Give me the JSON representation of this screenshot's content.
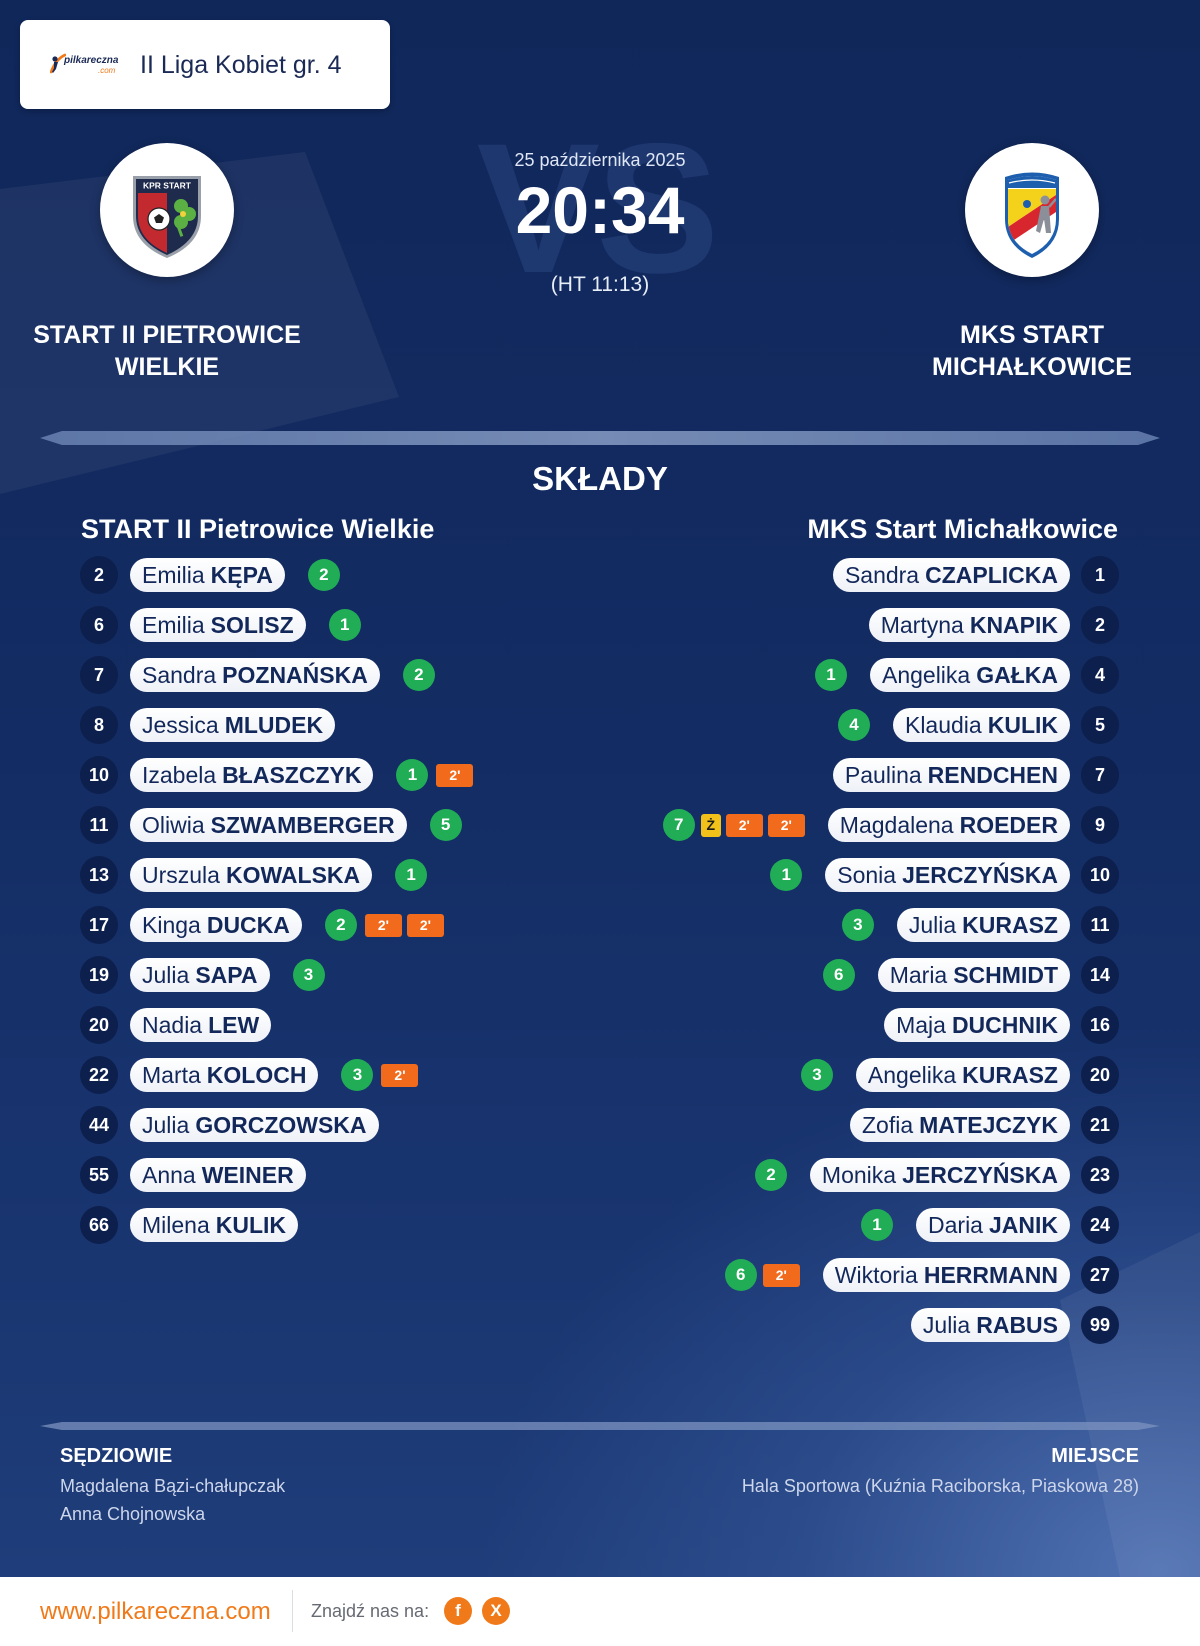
{
  "league": {
    "logo_text": "pilkareczna",
    "logo_suffix": ".com",
    "name": "II Liga Kobiet gr. 4"
  },
  "match": {
    "date": "25 października 2025",
    "score": "20:34",
    "halftime": "(HT 11:13)",
    "vs_label": "VS"
  },
  "home": {
    "name_display": "START II PIETROWICE WIELKIE",
    "lineup_title": "START II Pietrowice Wielkie",
    "logo_text": "KPR START",
    "players": [
      {
        "number": 2,
        "first": "Emilia",
        "last": "KĘPA",
        "goals": 2
      },
      {
        "number": 6,
        "first": "Emilia",
        "last": "SOLISZ",
        "goals": 1
      },
      {
        "number": 7,
        "first": "Sandra",
        "last": "POZNAŃSKA",
        "goals": 2
      },
      {
        "number": 8,
        "first": "Jessica",
        "last": "MLUDEK"
      },
      {
        "number": 10,
        "first": "Izabela",
        "last": "BŁASZCZYK",
        "goals": 1,
        "cards": [
          {
            "label": "2'",
            "color": "#f26b1d"
          }
        ]
      },
      {
        "number": 11,
        "first": "Oliwia",
        "last": "SZWAMBERGER",
        "goals": 5
      },
      {
        "number": 13,
        "first": "Urszula",
        "last": "KOWALSKA",
        "goals": 1
      },
      {
        "number": 17,
        "first": "Kinga",
        "last": "DUCKA",
        "goals": 2,
        "cards": [
          {
            "label": "2'",
            "color": "#f26b1d"
          },
          {
            "label": "2'",
            "color": "#f26b1d"
          }
        ]
      },
      {
        "number": 19,
        "first": "Julia",
        "last": "SAPA",
        "goals": 3
      },
      {
        "number": 20,
        "first": "Nadia",
        "last": "LEW"
      },
      {
        "number": 22,
        "first": "Marta",
        "last": "KOLOCH",
        "goals": 3,
        "cards": [
          {
            "label": "2'",
            "color": "#f26b1d"
          }
        ]
      },
      {
        "number": 44,
        "first": "Julia",
        "last": "GORCZOWSKA"
      },
      {
        "number": 55,
        "first": "Anna",
        "last": "WEINER"
      },
      {
        "number": 66,
        "first": "Milena",
        "last": "KULIK"
      }
    ]
  },
  "away": {
    "name_display": "MKS START MICHAŁKOWICE",
    "lineup_title": "MKS Start Michałkowice",
    "players": [
      {
        "number": 1,
        "first": "Sandra",
        "last": "CZAPLICKA"
      },
      {
        "number": 2,
        "first": "Martyna",
        "last": "KNAPIK"
      },
      {
        "number": 4,
        "first": "Angelika",
        "last": "GAŁKA",
        "goals": 1
      },
      {
        "number": 5,
        "first": "Klaudia",
        "last": "KULIK",
        "goals": 4
      },
      {
        "number": 7,
        "first": "Paulina",
        "last": "RENDCHEN"
      },
      {
        "number": 9,
        "first": "Magdalena",
        "last": "ROEDER",
        "goals": 7,
        "cards": [
          {
            "label": "Ż",
            "color": "#f2c21b"
          },
          {
            "label": "2'",
            "color": "#f26b1d"
          },
          {
            "label": "2'",
            "color": "#f26b1d"
          }
        ]
      },
      {
        "number": 10,
        "first": "Sonia",
        "last": "JERCZYŃSKA",
        "goals": 1
      },
      {
        "number": 11,
        "first": "Julia",
        "last": "KURASZ",
        "goals": 3
      },
      {
        "number": 14,
        "first": "Maria",
        "last": "SCHMIDT",
        "goals": 6
      },
      {
        "number": 16,
        "first": "Maja",
        "last": "DUCHNIK"
      },
      {
        "number": 20,
        "first": "Angelika",
        "last": "KURASZ",
        "goals": 3
      },
      {
        "number": 21,
        "first": "Zofia",
        "last": "MATEJCZYK"
      },
      {
        "number": 23,
        "first": "Monika",
        "last": "JERCZYŃSKA",
        "goals": 2
      },
      {
        "number": 24,
        "first": "Daria",
        "last": "JANIK",
        "goals": 1
      },
      {
        "number": 27,
        "first": "Wiktoria",
        "last": "HERRMANN",
        "goals": 6,
        "cards": [
          {
            "label": "2'",
            "color": "#f26b1d"
          }
        ]
      },
      {
        "number": 99,
        "first": "Julia",
        "last": "RABUS"
      }
    ]
  },
  "lineups": {
    "title": "SKŁADY"
  },
  "officials": {
    "title": "SĘDZIOWIE",
    "referees": [
      "Magdalena Bązi-chałupczak",
      "Anna Chojnowska"
    ]
  },
  "venue": {
    "title": "MIEJSCE",
    "name": "Hala Sportowa (Kuźnia Raciborska, Piaskowa 28)"
  },
  "footer": {
    "website": "www.pilkareczna.com",
    "find_us_label": "Znajdź nas na:",
    "social": [
      {
        "icon": "facebook-icon",
        "glyph": "f"
      },
      {
        "icon": "x-icon",
        "glyph": "X"
      }
    ]
  },
  "colors": {
    "background": "#10275a",
    "accent": "#f07a1a",
    "goal": "#20ad55",
    "suspension": "#f26b1d",
    "yellow_card": "#f2c21b",
    "pill_text": "#13285a",
    "number_badge": "#0c1f4d"
  }
}
